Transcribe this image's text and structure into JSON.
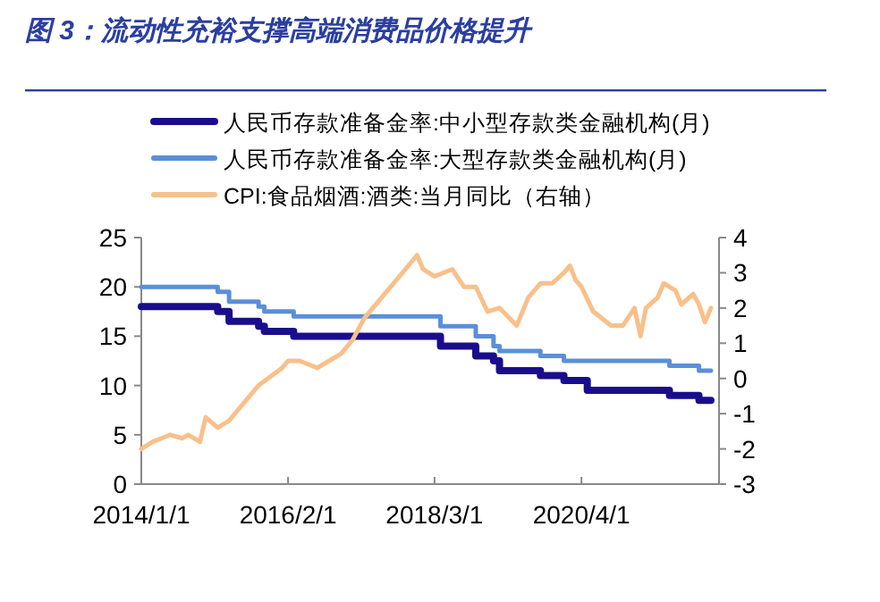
{
  "chart_data": {
    "type": "line",
    "title": "图 3：流动性充裕支撑高端消费品价格提升",
    "legend": "top",
    "grid": false,
    "xlim": [
      "2014-01-01",
      "2022-03-15"
    ],
    "xticks": [
      {
        "value": "2014-01-01",
        "label": "2014/1/1"
      },
      {
        "value": "2016-02-01",
        "label": "2016/2/1"
      },
      {
        "value": "2018-03-01",
        "label": "2018/3/1"
      },
      {
        "value": "2020-04-01",
        "label": "2020/4/1"
      }
    ],
    "ylim": [
      0,
      25
    ],
    "yticks": [
      0,
      5,
      10,
      15,
      20,
      25
    ],
    "y2lim": [
      -3,
      4
    ],
    "y2ticks": [
      -3,
      -2,
      -1,
      0,
      1,
      2,
      3,
      4
    ],
    "series": [
      {
        "name": "人民币存款准备金率:中小型存款类金融机构(月)",
        "type": "step",
        "axis": "y",
        "color": "#1a0d8c",
        "x": [
          "2014-01",
          "2015-02",
          "2015-04",
          "2015-09",
          "2015-10",
          "2016-03",
          "2018-04",
          "2018-10",
          "2019-01",
          "2019-02",
          "2019-09",
          "2020-01",
          "2020-05",
          "2021-07",
          "2021-12",
          "2022-02"
        ],
        "values": [
          18,
          17.5,
          16.5,
          16,
          15.5,
          15,
          14,
          13,
          12.5,
          11.5,
          11,
          10.5,
          9.5,
          9,
          8.5,
          8.5
        ]
      },
      {
        "name": "人民币存款准备金率:大型存款类金融机构(月)",
        "type": "step",
        "axis": "y",
        "color": "#5b8fd8",
        "x": [
          "2014-01",
          "2015-02",
          "2015-04",
          "2015-09",
          "2015-10",
          "2016-03",
          "2018-04",
          "2018-10",
          "2019-01",
          "2019-02",
          "2019-09",
          "2020-01",
          "2021-07",
          "2021-12",
          "2022-02"
        ],
        "values": [
          20,
          19.5,
          18.5,
          18,
          17.5,
          17,
          16,
          15,
          14,
          13.5,
          13,
          12.5,
          12,
          11.5,
          11.5
        ]
      },
      {
        "name": "CPI:食品烟酒:酒类:当月同比（右轴）",
        "type": "line",
        "axis": "y2",
        "color": "#f8c08a",
        "x": [
          "2014-01",
          "2014-03",
          "2014-06",
          "2014-08",
          "2014-09",
          "2014-11",
          "2014-12",
          "2015-02",
          "2015-04",
          "2015-07",
          "2015-09",
          "2016-01",
          "2016-02",
          "2016-04",
          "2016-07",
          "2016-09",
          "2016-11",
          "2017-01",
          "2017-03",
          "2017-05",
          "2017-07",
          "2017-10",
          "2017-12",
          "2018-01",
          "2018-03",
          "2018-06",
          "2018-08",
          "2018-10",
          "2018-12",
          "2019-02",
          "2019-05",
          "2019-07",
          "2019-09",
          "2019-11",
          "2020-01",
          "2020-02",
          "2020-03",
          "2020-04",
          "2020-06",
          "2020-09",
          "2020-11",
          "2021-01",
          "2021-02",
          "2021-03",
          "2021-05",
          "2021-06",
          "2021-08",
          "2021-09",
          "2021-11",
          "2021-12",
          "2022-01",
          "2022-02"
        ],
        "values": [
          -2.0,
          -1.8,
          -1.6,
          -1.7,
          -1.6,
          -1.8,
          -1.1,
          -1.4,
          -1.2,
          -0.6,
          -0.2,
          0.3,
          0.5,
          0.5,
          0.3,
          0.5,
          0.7,
          1.1,
          1.7,
          2.1,
          2.5,
          3.1,
          3.5,
          3.1,
          2.9,
          3.1,
          2.6,
          2.6,
          1.9,
          2.0,
          1.5,
          2.3,
          2.7,
          2.7,
          3.0,
          3.2,
          2.8,
          2.6,
          1.9,
          1.5,
          1.5,
          2.0,
          1.2,
          2.0,
          2.3,
          2.7,
          2.5,
          2.1,
          2.4,
          2.1,
          1.6,
          2.0
        ]
      }
    ]
  }
}
